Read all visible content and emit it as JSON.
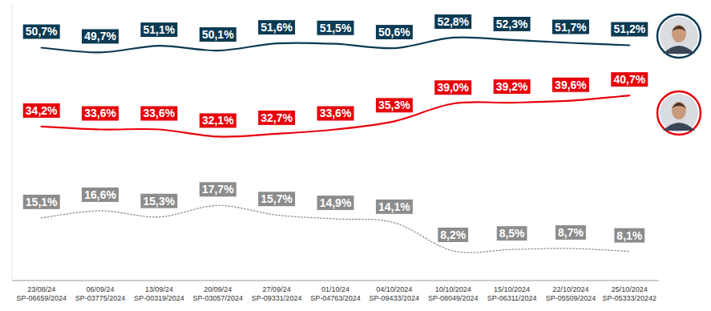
{
  "chart_data": {
    "type": "line",
    "categories": [
      "23/08/24\nSP-06659/2024",
      "06/09/24\nSP-03775/2024",
      "13/09/24\nSP-00319/2024",
      "20/09/24\nSP-03057/2024",
      "27/09/24\nSP-09331/2024",
      "01/10/24\nSP-04763/2024",
      "04/10/2024\nSP-09433/2024",
      "10/10/2024\nSP-08049/2024",
      "15/10/2024\nSP-06311/2024",
      "22/10/2024\nSP-05509/2024",
      "25/10/2024\nSP-05333/20242"
    ],
    "series": [
      {
        "color": "#0b3a53",
        "line_style": "solid",
        "values": [
          50.7,
          49.7,
          51.1,
          50.1,
          51.6,
          51.5,
          50.6,
          52.8,
          52.3,
          51.7,
          51.2
        ],
        "value_labels": [
          "50,7%",
          "49,7%",
          "51,1%",
          "50,1%",
          "51,6%",
          "51,5%",
          "50,6%",
          "52,8%",
          "52,3%",
          "51,7%",
          "51,2%"
        ]
      },
      {
        "color": "#e8000b",
        "line_style": "solid",
        "values": [
          34.2,
          33.6,
          33.6,
          32.1,
          32.7,
          33.6,
          35.3,
          39.0,
          39.2,
          39.6,
          40.7
        ],
        "value_labels": [
          "34,2%",
          "33,6%",
          "33,6%",
          "32,1%",
          "32,7%",
          "33,6%",
          "35,3%",
          "39,0%",
          "39,2%",
          "39,6%",
          "40,7%"
        ]
      },
      {
        "color": "#8c8c8c",
        "line_style": "dotted",
        "values": [
          15.1,
          16.6,
          15.3,
          17.7,
          15.7,
          14.9,
          14.1,
          8.2,
          8.5,
          8.7,
          8.1
        ],
        "value_labels": [
          "15,1%",
          "16,6%",
          "15,3%",
          "17,7%",
          "15,7%",
          "14,9%",
          "14,1%",
          "8,2%",
          "8,5%",
          "8,7%",
          "8,1%"
        ]
      }
    ],
    "ylim": [
      2,
      60
    ],
    "yticks": [],
    "tick_labels": "x",
    "data_labels": true,
    "grid": false
  }
}
